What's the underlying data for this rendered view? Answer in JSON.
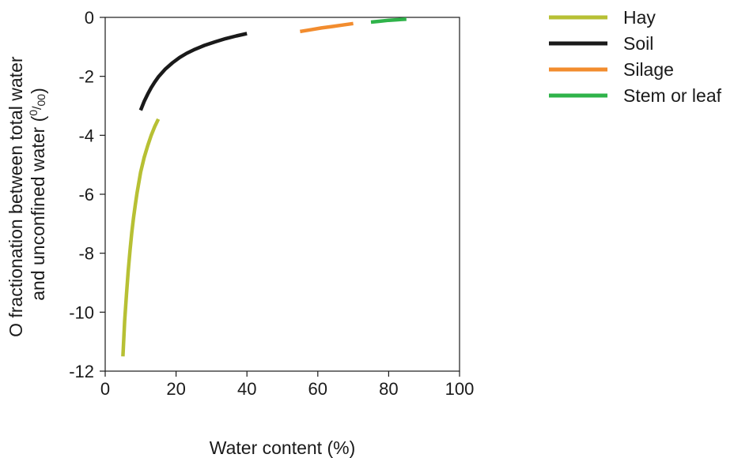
{
  "chart_data": {
    "type": "line",
    "xlabel": "Water content (%)",
    "ylabel_line1": "O fractionation between total water",
    "ylabel_line2_prefix": "and unconfined water (",
    "ylabel_unit_sup": "0",
    "ylabel_unit_sub": "00",
    "ylabel_line2_suffix": ")",
    "xlim": [
      0,
      100
    ],
    "ylim": [
      -12,
      0
    ],
    "x_ticks": [
      0,
      20,
      40,
      60,
      80,
      100
    ],
    "y_ticks": [
      0,
      -2,
      -4,
      -6,
      -8,
      -10,
      -12
    ],
    "legend_position": "top-right, outside plot",
    "series": [
      {
        "name": "Hay",
        "color": "#b7c034",
        "x": [
          5,
          5.5,
          6,
          6.5,
          7,
          7.5,
          8,
          8.5,
          9,
          10,
          11,
          12,
          13,
          14,
          15
        ],
        "y": [
          -11.5,
          -10.3,
          -9.4,
          -8.6,
          -7.9,
          -7.3,
          -6.8,
          -6.35,
          -5.95,
          -5.25,
          -4.75,
          -4.35,
          -4.0,
          -3.7,
          -3.45
        ]
      },
      {
        "name": "Soil",
        "color": "#1a1a1a",
        "x": [
          10,
          11,
          12,
          13,
          14,
          15,
          17,
          19,
          21,
          23,
          25,
          28,
          31,
          34,
          37,
          40
        ],
        "y": [
          -3.15,
          -2.85,
          -2.6,
          -2.38,
          -2.19,
          -2.02,
          -1.75,
          -1.54,
          -1.36,
          -1.22,
          -1.1,
          -0.95,
          -0.83,
          -0.72,
          -0.63,
          -0.55
        ]
      },
      {
        "name": "Silage",
        "color": "#f28c2e",
        "x": [
          55,
          58,
          61,
          64,
          67,
          70
        ],
        "y": [
          -0.48,
          -0.42,
          -0.36,
          -0.31,
          -0.26,
          -0.21
        ]
      },
      {
        "name": "Stem or leaf",
        "color": "#2fb34a",
        "x": [
          75,
          77.5,
          80,
          82.5,
          85
        ],
        "y": [
          -0.16,
          -0.13,
          -0.1,
          -0.08,
          -0.06
        ]
      }
    ]
  }
}
